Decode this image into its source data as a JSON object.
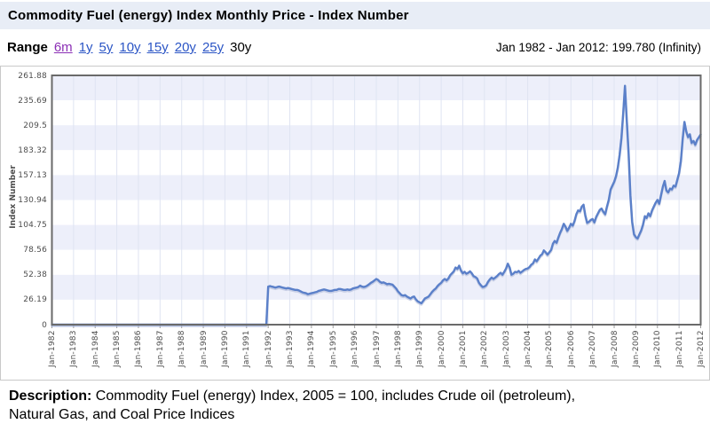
{
  "header": {
    "title": "Commodity Fuel (energy) Index Monthly Price - Index Number"
  },
  "range_bar": {
    "label": "Range",
    "options": [
      {
        "label": "6m",
        "state": "visited"
      },
      {
        "label": "1y",
        "state": "link"
      },
      {
        "label": "5y",
        "state": "link"
      },
      {
        "label": "10y",
        "state": "link"
      },
      {
        "label": "15y",
        "state": "link"
      },
      {
        "label": "20y",
        "state": "link"
      },
      {
        "label": "25y",
        "state": "link"
      },
      {
        "label": "30y",
        "state": "current"
      }
    ],
    "summary": "Jan 1982 - Jan 2012: 199.780 (Infinity)"
  },
  "chart_data": {
    "type": "line",
    "title": "Commodity Fuel (energy) Index Monthly Price",
    "ylabel": "Index Number",
    "xlabel": "",
    "ylim": [
      0,
      261.88
    ],
    "grid": "horizontal alternating bands every 26.19 units, vertical line each January",
    "legend": "none",
    "y_tick_labels": [
      "261.88",
      "235.69",
      "209.5",
      "183.32",
      "157.13",
      "130.94",
      "104.75",
      "78.56",
      "52.38",
      "26.19",
      "0"
    ],
    "x_tick_labels": [
      "Jan-1982",
      "Jan-1983",
      "Jan-1984",
      "Jan-1985",
      "Jan-1986",
      "Jan-1987",
      "Jan-1988",
      "Jan-1989",
      "Jan-1990",
      "Jan-1991",
      "Jan-1992",
      "Jan-1993",
      "Jan-1994",
      "Jan-1995",
      "Jan-1996",
      "Jan-1997",
      "Jan-1998",
      "Jan-1999",
      "Jan-2000",
      "Jan-2001",
      "Jan-2002",
      "Jan-2003",
      "Jan-2004",
      "Jan-2005",
      "Jan-2006",
      "Jan-2007",
      "Jan-2008",
      "Jan-2009",
      "Jan-2010",
      "Jan-2011",
      "Jan-2012"
    ],
    "series": [
      {
        "name": "Commodity Fuel (energy) Index",
        "start": "Jan-1982",
        "end": "Jan-2012",
        "frequency": "monthly",
        "last_value": 199.78,
        "values": [
          0,
          0,
          0,
          0,
          0,
          0,
          0,
          0,
          0,
          0,
          0,
          0,
          0,
          0,
          0,
          0,
          0,
          0,
          0,
          0,
          0,
          0,
          0,
          0,
          0,
          0,
          0,
          0,
          0,
          0,
          0,
          0,
          0,
          0,
          0,
          0,
          0,
          0,
          0,
          0,
          0,
          0,
          0,
          0,
          0,
          0,
          0,
          0,
          0,
          0,
          0,
          0,
          0,
          0,
          0,
          0,
          0,
          0,
          0,
          0,
          0,
          0,
          0,
          0,
          0,
          0,
          0,
          0,
          0,
          0,
          0,
          0,
          0,
          0,
          0,
          0,
          0,
          0,
          0,
          0,
          0,
          0,
          0,
          0,
          0,
          0,
          0,
          0,
          0,
          0,
          0,
          0,
          0,
          0,
          0,
          0,
          0,
          0,
          0,
          0,
          0,
          0,
          0,
          0,
          0,
          0,
          0,
          0,
          0,
          0,
          0,
          0,
          0,
          0,
          0,
          0,
          0,
          0,
          0,
          0,
          40,
          40.5,
          40,
          39.5,
          39,
          39.5,
          40,
          39.5,
          39,
          38.5,
          38,
          38.5,
          38,
          37.5,
          37,
          36.5,
          36.5,
          36,
          35,
          34,
          33.5,
          33,
          32,
          32.5,
          33,
          33.5,
          34,
          34.5,
          35.5,
          36,
          36.5,
          37,
          36.5,
          36,
          35.5,
          35.5,
          36,
          36.5,
          36.5,
          37.5,
          37.5,
          37,
          36.5,
          36.5,
          37,
          36.5,
          37,
          38,
          38.5,
          39,
          39.5,
          41,
          40,
          39.5,
          40,
          41,
          42.5,
          44,
          45,
          46.5,
          48,
          47,
          45,
          44,
          44.5,
          43.5,
          42.5,
          43,
          42.5,
          42,
          40,
          38,
          35,
          33,
          31,
          30.5,
          31,
          29.5,
          28.5,
          27.5,
          29,
          29.5,
          26.5,
          24.5,
          23.5,
          22.5,
          25,
          27.5,
          28.5,
          29.5,
          32,
          34.5,
          36.5,
          38,
          40.5,
          42.5,
          44,
          46.5,
          48,
          46.5,
          48.5,
          52,
          54,
          56,
          60,
          58.5,
          62,
          57,
          54,
          55.5,
          53.5,
          54.5,
          56,
          54,
          51,
          50,
          48.5,
          44,
          41.5,
          39.5,
          40,
          41.5,
          45,
          47.5,
          49.5,
          48,
          49.5,
          51,
          53,
          54.5,
          52.5,
          55.5,
          59,
          64,
          60,
          52.5,
          53.5,
          55.5,
          55,
          56.5,
          54.5,
          56,
          57.5,
          58.5,
          59,
          60.5,
          63,
          64.5,
          68.5,
          66.5,
          69.5,
          72.5,
          74,
          78,
          76,
          73.5,
          76,
          78.5,
          85,
          88,
          86,
          91.5,
          96.5,
          100.5,
          106,
          103,
          98.5,
          102,
          106,
          104,
          109,
          116,
          120,
          119,
          124,
          126,
          115,
          107,
          108,
          110,
          111,
          107.5,
          113,
          117,
          120.5,
          122,
          118.5,
          116,
          124,
          131,
          142,
          146,
          150,
          156,
          165,
          178,
          196,
          222,
          251,
          215,
          180,
          136,
          108,
          95,
          92,
          90.5,
          95,
          99,
          105,
          114,
          112,
          117,
          114,
          120,
          124,
          128,
          131,
          127,
          136,
          145,
          151,
          141,
          139,
          143,
          142,
          146,
          145,
          152,
          159,
          172,
          195,
          213,
          203,
          197,
          200,
          191,
          193,
          189,
          194,
          197,
          199.78
        ]
      }
    ]
  },
  "description": {
    "label": "Description:",
    "text": " Commodity Fuel (energy) Index, 2005 = 100, includes Crude oil (petroleum), Natural Gas, and Coal Price Indices"
  },
  "colors": {
    "header_bg": "#e8edf6",
    "link_blue": "#2b55c5",
    "link_visited": "#8b2fb5",
    "line": "#5b80c9",
    "line_shadow": "#a9b4d6",
    "band": "#edeffa",
    "grid_vertical": "#dfe4f2",
    "plot_border": "#6a6a6a",
    "axis_text": "#4d4d4d",
    "container_border": "#c9c9c9"
  }
}
